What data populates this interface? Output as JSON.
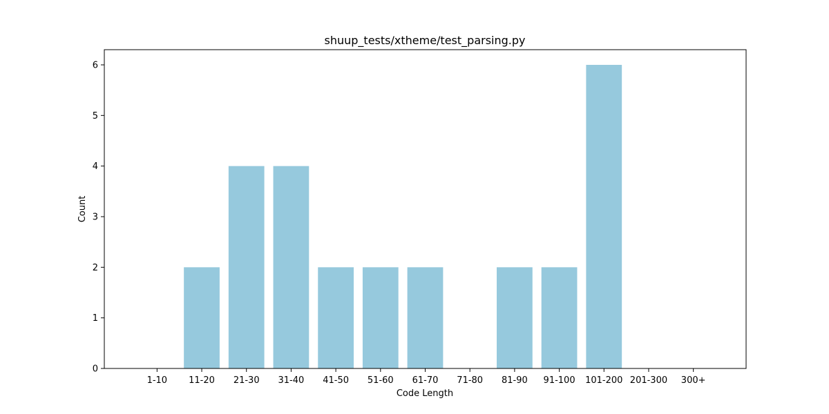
{
  "chart_data": {
    "type": "bar",
    "title": "shuup_tests/xtheme/test_parsing.py",
    "xlabel": "Code Length",
    "ylabel": "Count",
    "categories": [
      "1-10",
      "11-20",
      "21-30",
      "31-40",
      "41-50",
      "51-60",
      "61-70",
      "71-80",
      "81-90",
      "91-100",
      "101-200",
      "201-300",
      "300+"
    ],
    "values": [
      0,
      2,
      4,
      4,
      2,
      2,
      2,
      0,
      2,
      2,
      6,
      0,
      0
    ],
    "ylim": [
      0,
      6.3
    ],
    "yticks": [
      0,
      1,
      2,
      3,
      4,
      5,
      6
    ],
    "bar_color": "#96c9dd",
    "grid": false,
    "legend": "none"
  }
}
